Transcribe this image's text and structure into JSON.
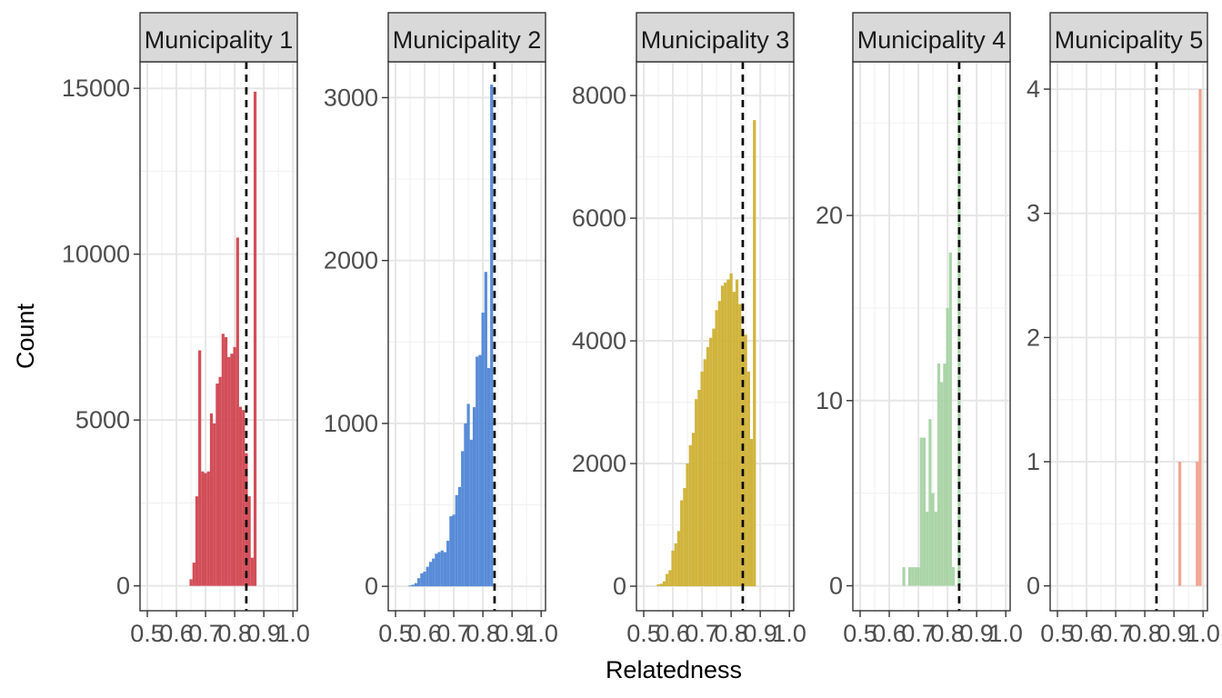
{
  "chart_data": {
    "type": "histogram",
    "layout": "facet_wrap",
    "xlabel": "Relatedness",
    "ylabel": "Count",
    "reference_line": {
      "x": 0.84,
      "style": "dashed",
      "color": "#000000"
    },
    "x_ticks": [
      0.5,
      0.6,
      0.7,
      0.8,
      0.9,
      1.0
    ],
    "x_tick_labels": [
      "0.5",
      "0.6",
      "0.7",
      "0.8",
      "0.9",
      "1.0"
    ],
    "xlim": [
      0.475,
      1.015
    ],
    "bin_width": 0.01,
    "grid": true,
    "facets": [
      {
        "label": "Municipality 1",
        "color": "#D0444F",
        "ylim": [
          -750,
          15800
        ],
        "y_ticks": [
          0,
          5000,
          10000,
          15000
        ],
        "y_tick_labels": [
          "0",
          "5000",
          "10000",
          "15000"
        ],
        "bins": [
          {
            "x": 0.65,
            "count": 200
          },
          {
            "x": 0.66,
            "count": 700
          },
          {
            "x": 0.67,
            "count": 2700
          },
          {
            "x": 0.68,
            "count": 7100
          },
          {
            "x": 0.69,
            "count": 3450
          },
          {
            "x": 0.7,
            "count": 3400
          },
          {
            "x": 0.71,
            "count": 3450
          },
          {
            "x": 0.72,
            "count": 5200
          },
          {
            "x": 0.73,
            "count": 4900
          },
          {
            "x": 0.74,
            "count": 6100
          },
          {
            "x": 0.75,
            "count": 6300
          },
          {
            "x": 0.76,
            "count": 7600
          },
          {
            "x": 0.77,
            "count": 7500
          },
          {
            "x": 0.78,
            "count": 6900
          },
          {
            "x": 0.79,
            "count": 7000
          },
          {
            "x": 0.8,
            "count": 7200
          },
          {
            "x": 0.81,
            "count": 10500
          },
          {
            "x": 0.82,
            "count": 5400
          },
          {
            "x": 0.83,
            "count": 5300
          },
          {
            "x": 0.84,
            "count": 4000
          },
          {
            "x": 0.85,
            "count": 2700
          },
          {
            "x": 0.86,
            "count": 850
          },
          {
            "x": 0.87,
            "count": 14900
          }
        ]
      },
      {
        "label": "Municipality 2",
        "color": "#4F86D6",
        "ylim": [
          -150,
          3220
        ],
        "y_ticks": [
          0,
          1000,
          2000,
          3000
        ],
        "y_tick_labels": [
          "0",
          "1000",
          "2000",
          "3000"
        ],
        "bins": [
          {
            "x": 0.55,
            "count": 5
          },
          {
            "x": 0.56,
            "count": 10
          },
          {
            "x": 0.57,
            "count": 20
          },
          {
            "x": 0.58,
            "count": 50
          },
          {
            "x": 0.59,
            "count": 80
          },
          {
            "x": 0.6,
            "count": 90
          },
          {
            "x": 0.61,
            "count": 120
          },
          {
            "x": 0.62,
            "count": 150
          },
          {
            "x": 0.63,
            "count": 170
          },
          {
            "x": 0.64,
            "count": 200
          },
          {
            "x": 0.65,
            "count": 210
          },
          {
            "x": 0.66,
            "count": 220
          },
          {
            "x": 0.67,
            "count": 210
          },
          {
            "x": 0.68,
            "count": 280
          },
          {
            "x": 0.69,
            "count": 430
          },
          {
            "x": 0.7,
            "count": 440
          },
          {
            "x": 0.71,
            "count": 560
          },
          {
            "x": 0.72,
            "count": 610
          },
          {
            "x": 0.73,
            "count": 830
          },
          {
            "x": 0.74,
            "count": 1000
          },
          {
            "x": 0.75,
            "count": 1120
          },
          {
            "x": 0.76,
            "count": 900
          },
          {
            "x": 0.77,
            "count": 1100
          },
          {
            "x": 0.78,
            "count": 1410
          },
          {
            "x": 0.79,
            "count": 1420
          },
          {
            "x": 0.8,
            "count": 1680
          },
          {
            "x": 0.81,
            "count": 1930
          },
          {
            "x": 0.82,
            "count": 1340
          },
          {
            "x": 0.83,
            "count": 3080
          }
        ]
      },
      {
        "label": "Municipality 3",
        "color": "#CFB033",
        "ylim": [
          -400,
          8550
        ],
        "y_ticks": [
          0,
          2000,
          4000,
          6000,
          8000
        ],
        "y_tick_labels": [
          "0",
          "2000",
          "4000",
          "6000",
          "8000"
        ],
        "bins": [
          {
            "x": 0.55,
            "count": 30
          },
          {
            "x": 0.56,
            "count": 40
          },
          {
            "x": 0.57,
            "count": 80
          },
          {
            "x": 0.58,
            "count": 200
          },
          {
            "x": 0.59,
            "count": 260
          },
          {
            "x": 0.6,
            "count": 580
          },
          {
            "x": 0.61,
            "count": 700
          },
          {
            "x": 0.62,
            "count": 900
          },
          {
            "x": 0.63,
            "count": 1400
          },
          {
            "x": 0.64,
            "count": 1600
          },
          {
            "x": 0.65,
            "count": 2000
          },
          {
            "x": 0.66,
            "count": 2300
          },
          {
            "x": 0.67,
            "count": 2500
          },
          {
            "x": 0.68,
            "count": 3050
          },
          {
            "x": 0.69,
            "count": 3200
          },
          {
            "x": 0.7,
            "count": 3500
          },
          {
            "x": 0.71,
            "count": 3700
          },
          {
            "x": 0.72,
            "count": 3900
          },
          {
            "x": 0.73,
            "count": 4050
          },
          {
            "x": 0.74,
            "count": 4200
          },
          {
            "x": 0.75,
            "count": 4500
          },
          {
            "x": 0.76,
            "count": 4650
          },
          {
            "x": 0.77,
            "count": 4900
          },
          {
            "x": 0.78,
            "count": 4950
          },
          {
            "x": 0.79,
            "count": 5000
          },
          {
            "x": 0.8,
            "count": 5100
          },
          {
            "x": 0.81,
            "count": 4800
          },
          {
            "x": 0.82,
            "count": 5000
          },
          {
            "x": 0.83,
            "count": 4600
          },
          {
            "x": 0.84,
            "count": 4200
          },
          {
            "x": 0.85,
            "count": 4100
          },
          {
            "x": 0.86,
            "count": 3500
          },
          {
            "x": 0.87,
            "count": 2400
          },
          {
            "x": 0.88,
            "count": 7600
          }
        ]
      },
      {
        "label": "Municipality 4",
        "color": "#A6D3A3",
        "ylim": [
          -1.35,
          28.3
        ],
        "y_ticks": [
          0,
          10,
          20
        ],
        "y_tick_labels": [
          "0",
          "10",
          "20"
        ],
        "bins": [
          {
            "x": 0.65,
            "count": 1
          },
          {
            "x": 0.66,
            "count": 0
          },
          {
            "x": 0.67,
            "count": 1
          },
          {
            "x": 0.68,
            "count": 1
          },
          {
            "x": 0.69,
            "count": 1
          },
          {
            "x": 0.7,
            "count": 1
          },
          {
            "x": 0.71,
            "count": 8
          },
          {
            "x": 0.72,
            "count": 8
          },
          {
            "x": 0.73,
            "count": 4
          },
          {
            "x": 0.74,
            "count": 9
          },
          {
            "x": 0.75,
            "count": 5
          },
          {
            "x": 0.76,
            "count": 4
          },
          {
            "x": 0.77,
            "count": 12
          },
          {
            "x": 0.78,
            "count": 11
          },
          {
            "x": 0.79,
            "count": 12
          },
          {
            "x": 0.8,
            "count": 15
          },
          {
            "x": 0.81,
            "count": 18
          },
          {
            "x": 0.82,
            "count": 1
          },
          {
            "x": 0.83,
            "count": 0
          },
          {
            "x": 0.84,
            "count": 27
          }
        ]
      },
      {
        "label": "Municipality 5",
        "color": "#F0A08A",
        "ylim": [
          -0.2,
          4.22
        ],
        "y_ticks": [
          0,
          1,
          2,
          3,
          4
        ],
        "y_tick_labels": [
          "0",
          "1",
          "2",
          "3",
          "4"
        ],
        "bins": [
          {
            "x": 0.92,
            "count": 1
          },
          {
            "x": 0.98,
            "count": 1
          },
          {
            "x": 0.99,
            "count": 4
          }
        ]
      }
    ]
  }
}
